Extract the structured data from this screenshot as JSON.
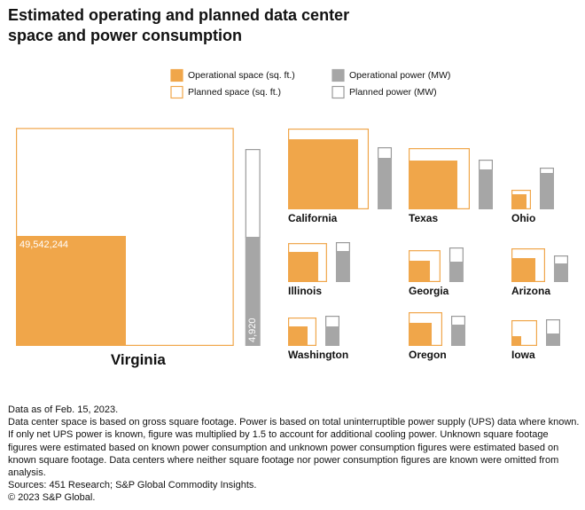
{
  "chart_data": {
    "type": "nested-squares",
    "title": "Estimated operating and planned data center space and power consumption",
    "categories": [
      "Virginia",
      "California",
      "Texas",
      "Ohio",
      "Illinois",
      "Georgia",
      "Arizona",
      "Washington",
      "Oregon",
      "Iowa"
    ],
    "series": [
      {
        "name": "Operational space (sq. ft.)",
        "color": "#f0a64a",
        "values": [
          49542244,
          20100000,
          9740000,
          930000,
          3720000,
          1860000,
          2350000,
          1560000,
          2180000,
          390000
        ],
        "value_labels": [
          "49,542,244",
          null,
          null,
          null,
          null,
          null,
          null,
          null,
          null,
          null
        ]
      },
      {
        "name": "Planned space (sq. ft.)",
        "color": "#f0a64a",
        "values": [
          145000000,
          6600000,
          5600000,
          630000,
          2500000,
          2300000,
          2300000,
          1740000,
          2470000,
          2320000
        ]
      },
      {
        "name": "Operational power (MW)",
        "color": "#a6a6a6",
        "values": [
          4920,
          2320,
          1800,
          1640,
          1400,
          920,
          840,
          880,
          960,
          560
        ],
        "value_labels": [
          "4,920",
          null,
          null,
          null,
          null,
          null,
          null,
          null,
          null,
          null
        ]
      },
      {
        "name": "Planned power (MW)",
        "color": "#9a9a9a",
        "values": [
          3960,
          480,
          440,
          240,
          400,
          640,
          360,
          480,
          400,
          640
        ]
      }
    ],
    "notes": [
      "Data as of Feb. 15, 2023.",
      "Data center space is based on gross square footage. Power is based on total uninterruptible power supply (UPS) data where known. If only net UPS power is known, figure was multiplied by 1.5 to account for additional cooling power. Unknown square footage figures were estimated based on known power consumption and unknown power consumption figures were estimated based on known square footage. Data centers where neither square footage nor power consumption figures are known were omitted from analysis.",
      "Sources: 451 Research; S&P Global Commodity Insights.",
      "© 2023 S&P Global."
    ]
  }
}
